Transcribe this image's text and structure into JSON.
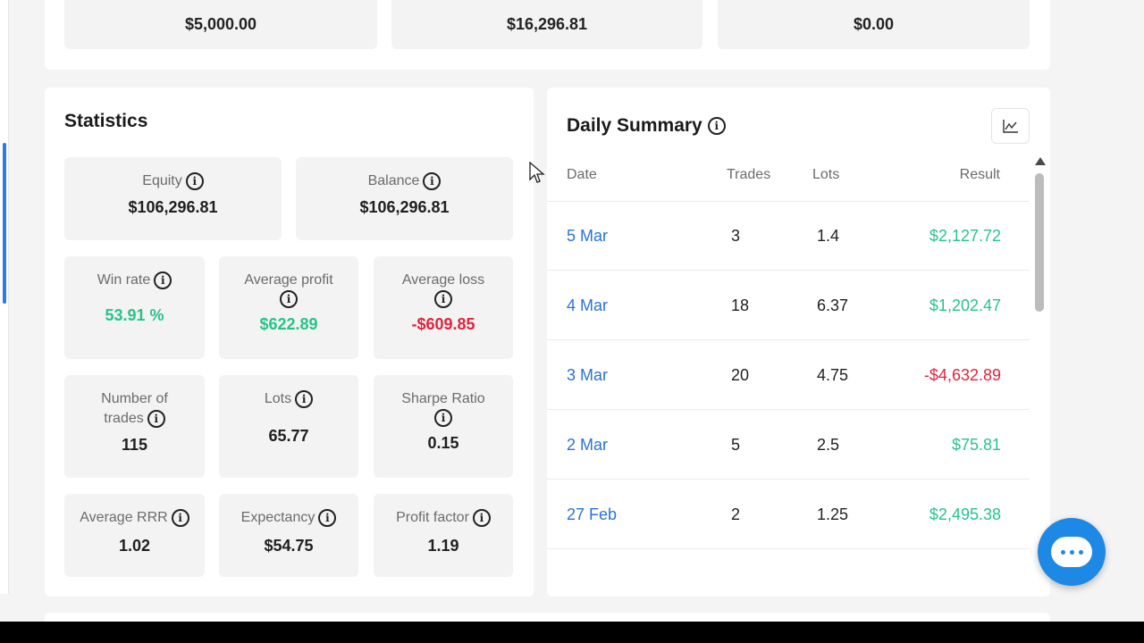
{
  "top_values": [
    "$5,000.00",
    "$16,296.81",
    "$0.00"
  ],
  "statistics": {
    "title": "Statistics",
    "equity": {
      "label": "Equity",
      "value": "$106,296.81"
    },
    "balance": {
      "label": "Balance",
      "value": "$106,296.81"
    },
    "win_rate": {
      "label": "Win rate",
      "value": "53.91 %"
    },
    "average_profit": {
      "label": "Average profit",
      "value": "$622.89"
    },
    "average_loss": {
      "label": "Average loss",
      "value": "-$609.85"
    },
    "number_of_trades": {
      "label_line1": "Number of",
      "label_line2": "trades",
      "value": "115"
    },
    "lots": {
      "label": "Lots",
      "value": "65.77"
    },
    "sharpe_ratio": {
      "label": "Sharpe Ratio",
      "value": "0.15"
    },
    "average_rrr": {
      "label": "Average RRR",
      "value": "1.02"
    },
    "expectancy": {
      "label": "Expectancy",
      "value": "$54.75"
    },
    "profit_factor": {
      "label": "Profit factor",
      "value": "1.19"
    }
  },
  "daily_summary": {
    "title": "Daily Summary",
    "headers": {
      "date": "Date",
      "trades": "Trades",
      "lots": "Lots",
      "result": "Result"
    },
    "rows": [
      {
        "date": "5 Mar",
        "trades": "3",
        "lots": "1.4",
        "result": "$2,127.72"
      },
      {
        "date": "4 Mar",
        "trades": "18",
        "lots": "6.37",
        "result": "$1,202.47"
      },
      {
        "date": "3 Mar",
        "trades": "20",
        "lots": "4.75",
        "result": "-$4,632.89"
      },
      {
        "date": "2 Mar",
        "trades": "5",
        "lots": "2.5",
        "result": "$75.81"
      },
      {
        "date": "27 Feb",
        "trades": "2",
        "lots": "1.25",
        "result": "$2,495.38"
      }
    ]
  },
  "icons": {
    "info": "info-icon",
    "chart": "line-chart-icon",
    "chat": "chat-icon"
  },
  "colors": {
    "positive": "#27c38b",
    "negative": "#e0243c",
    "link": "#2a73d4",
    "chat": "#1e88e5"
  }
}
